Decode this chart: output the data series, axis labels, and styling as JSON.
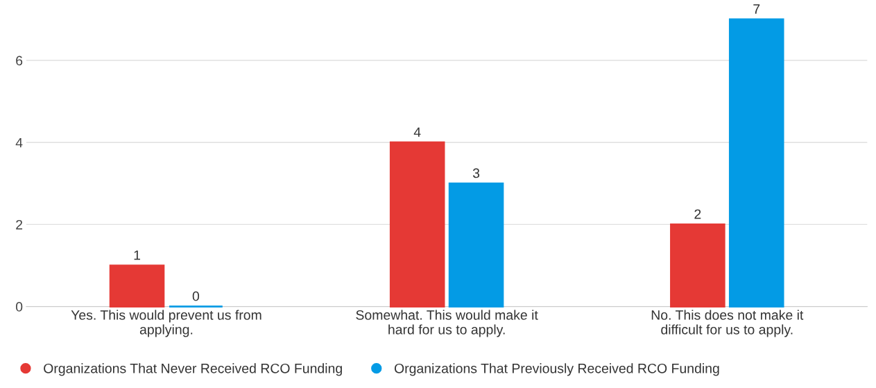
{
  "chart_data": {
    "type": "bar",
    "categories": [
      "Yes. This would prevent us from applying.",
      "Somewhat. This would make it hard for us to apply.",
      "No. This does not make it difficult for us to apply."
    ],
    "series": [
      {
        "name": "Organizations That Never Received RCO Funding",
        "color": "#e53935",
        "values": [
          1,
          4,
          2
        ]
      },
      {
        "name": "Organizations That Previously Received RCO Funding",
        "color": "#039be5",
        "values": [
          0,
          3,
          7
        ]
      }
    ],
    "ylim": [
      0,
      7
    ],
    "yticks": [
      0,
      2,
      4,
      6
    ],
    "grid": "y",
    "legend": "bottom",
    "data_labels": true
  }
}
